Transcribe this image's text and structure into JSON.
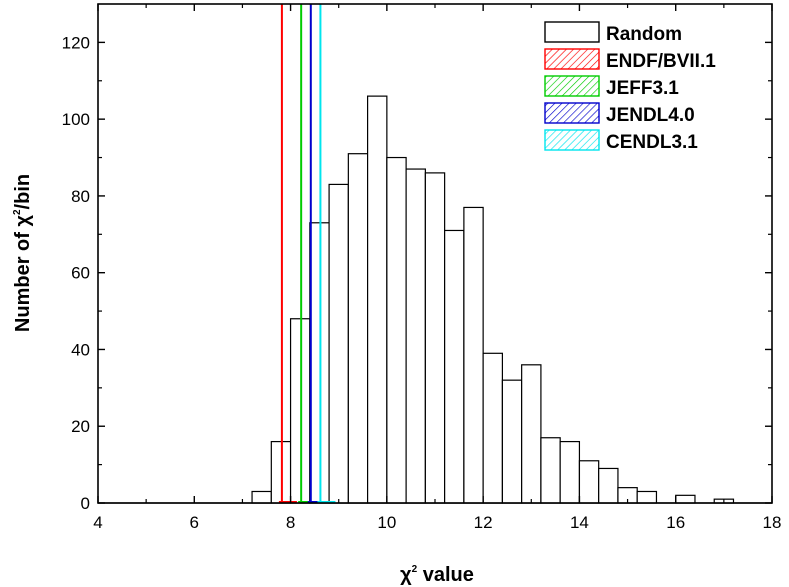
{
  "chart_data": {
    "type": "bar",
    "title": "",
    "xlabel": {
      "symbol": "χ",
      "superscript": "2",
      "rest": "value"
    },
    "ylabel": {
      "prefix": "Number of",
      "symbol": "χ",
      "superscript": "2",
      "suffix": "/bin"
    },
    "xlim": [
      4,
      18
    ],
    "ylim": [
      0,
      130
    ],
    "x_ticks": [
      4,
      6,
      8,
      10,
      12,
      14,
      16,
      18
    ],
    "y_ticks": [
      0,
      20,
      40,
      60,
      80,
      100,
      120
    ],
    "bin_width": 0.4,
    "series": [
      {
        "name": "Random",
        "kind": "histogram",
        "color": "#000000",
        "bin_starts": [
          7.2,
          7.6,
          8.0,
          8.4,
          8.8,
          9.2,
          9.6,
          10.0,
          10.4,
          10.8,
          11.2,
          11.6,
          12.0,
          12.4,
          12.8,
          13.2,
          13.6,
          14.0,
          14.4,
          14.8,
          15.2,
          15.6,
          16.0,
          16.4,
          16.8
        ],
        "values": [
          3,
          16,
          48,
          73,
          83,
          91,
          106,
          90,
          87,
          86,
          71,
          77,
          39,
          32,
          36,
          17,
          16,
          11,
          9,
          4,
          3,
          0,
          2,
          0,
          1
        ]
      },
      {
        "name": "ENDF/BVII.1",
        "kind": "reference-line",
        "color": "#ff0000",
        "x": 7.82
      },
      {
        "name": "JEFF3.1",
        "kind": "reference-line",
        "color": "#00cc00",
        "x": 8.22
      },
      {
        "name": "JENDL4.0",
        "kind": "reference-line",
        "color": "#0000cc",
        "x": 8.42
      },
      {
        "name": "CENDL3.1",
        "kind": "reference-line",
        "color": "#00e5ee",
        "x": 8.62
      }
    ],
    "legend": {
      "position": "top-right"
    },
    "grid": false
  }
}
